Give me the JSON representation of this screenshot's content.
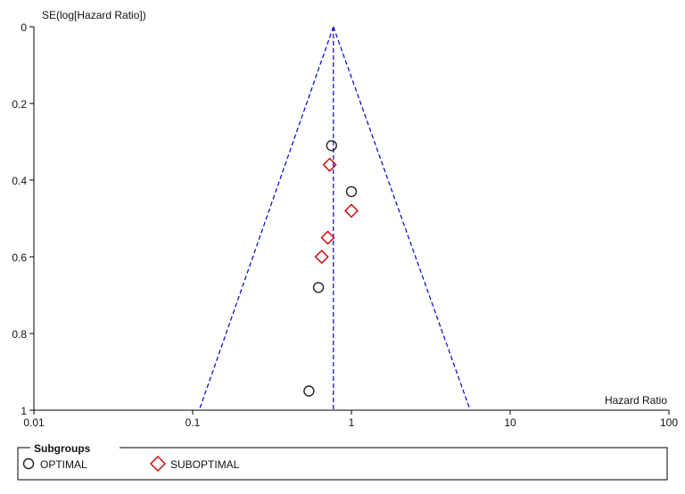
{
  "chart_data": {
    "type": "scatter",
    "subtype": "funnel-plot",
    "xlabel": "Hazard Ratio",
    "ylabel": "SE(log[Hazard Ratio])",
    "x_scale": "log",
    "xlim": [
      0.01,
      100
    ],
    "ylim": [
      0,
      1
    ],
    "y_inverted": true,
    "x_ticks": [
      0.01,
      0.1,
      1,
      10,
      100
    ],
    "x_tick_labels": [
      "0.01",
      "0.1",
      "1",
      "10",
      "100"
    ],
    "y_ticks": [
      0,
      0.2,
      0.4,
      0.6,
      0.8,
      1
    ],
    "y_tick_labels": [
      "0",
      "0.2",
      "0.4",
      "0.6",
      "0.8",
      "1"
    ],
    "pooled_estimate": 0.77,
    "funnel": {
      "apex": [
        0.77,
        0
      ],
      "left_base": [
        0.11,
        1
      ],
      "right_base": [
        5.6,
        1
      ],
      "color": "#0000cc",
      "style": "dashed"
    },
    "series": [
      {
        "name": "OPTIMAL",
        "marker": "circle",
        "color": "#222222",
        "points": [
          {
            "x": 0.75,
            "y": 0.31
          },
          {
            "x": 1.0,
            "y": 0.43
          },
          {
            "x": 0.62,
            "y": 0.68
          },
          {
            "x": 0.54,
            "y": 0.95
          }
        ]
      },
      {
        "name": "SUBOPTIMAL",
        "marker": "diamond",
        "color": "#cc0000",
        "points": [
          {
            "x": 0.73,
            "y": 0.36
          },
          {
            "x": 1.0,
            "y": 0.48
          },
          {
            "x": 0.71,
            "y": 0.55
          },
          {
            "x": 0.65,
            "y": 0.6
          }
        ]
      }
    ],
    "legend": {
      "title": "Subgroups",
      "position": "bottom",
      "items": [
        "OPTIMAL",
        "SUBOPTIMAL"
      ]
    },
    "grid": false
  }
}
